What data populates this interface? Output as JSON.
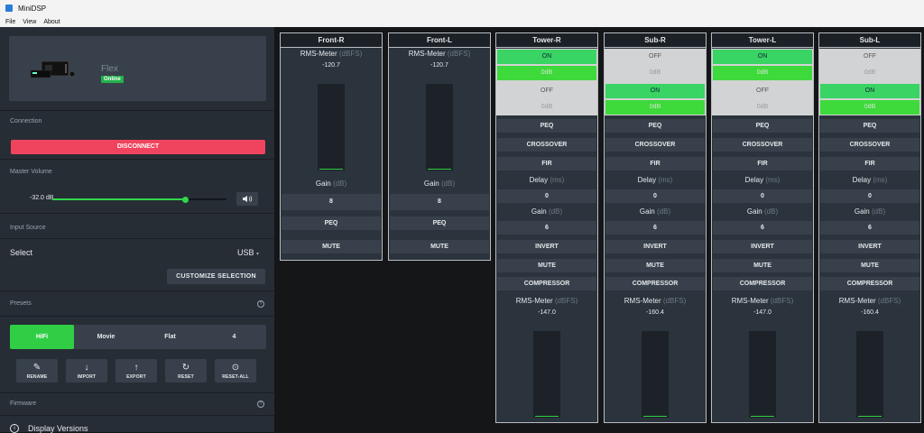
{
  "window": {
    "title": "MiniDSP"
  },
  "menu": [
    "File",
    "View",
    "About"
  ],
  "device": {
    "name": "Flex",
    "status": "Online"
  },
  "connection": {
    "label": "Connection",
    "button": "DISCONNECT"
  },
  "volume": {
    "label": "Master Volume",
    "value": "-32.0 dB",
    "level": 0.76
  },
  "input": {
    "section": "Input Source",
    "select_label": "Select",
    "value": "USB",
    "customize": "CUSTOMIZE SELECTION"
  },
  "presets": {
    "label": "Presets",
    "items": [
      "HiFi",
      "Movie",
      "Flat",
      "4"
    ],
    "active": "HiFi"
  },
  "actions": [
    {
      "label": "RENAME",
      "icon": "edit-icon",
      "glyph": "✎"
    },
    {
      "label": "IMPORT",
      "icon": "arrow-down-icon",
      "glyph": "↓"
    },
    {
      "label": "EXPORT",
      "icon": "arrow-up-icon",
      "glyph": "↑"
    },
    {
      "label": "RESET",
      "icon": "refresh-icon",
      "glyph": "↻"
    },
    {
      "label": "RESET-ALL",
      "icon": "reset-all-icon",
      "glyph": "⊙"
    }
  ],
  "firmware": {
    "label": "Firmware",
    "display_versions": "Display Versions"
  },
  "inputs": [
    {
      "name": "Front-R",
      "meter_label": "RMS-Meter",
      "meter_unit": "(dBFS)",
      "meter_value": "-120.7",
      "gain_label": "Gain",
      "gain_unit": "(dB)",
      "gain_value": "8",
      "peq": "PEQ",
      "mute": "MUTE"
    },
    {
      "name": "Front-L",
      "meter_label": "RMS-Meter",
      "meter_unit": "(dBFS)",
      "meter_value": "-120.7",
      "gain_label": "Gain",
      "gain_unit": "(dB)",
      "gain_value": "8",
      "peq": "PEQ",
      "mute": "MUTE"
    }
  ],
  "outputs": [
    {
      "name": "Tower-R",
      "routes": [
        {
          "state": "ON",
          "level": "0",
          "unit": "dB"
        },
        {
          "state": "OFF",
          "level": "0",
          "unit": "dB"
        }
      ],
      "peq": "PEQ",
      "crossover": "CROSSOVER",
      "fir": "FIR",
      "delay_label": "Delay",
      "delay_unit": "(ms)",
      "delay_value": "0",
      "gain_label": "Gain",
      "gain_unit": "(dB)",
      "gain_value": "6",
      "invert": "INVERT",
      "mute": "MUTE",
      "compressor": "COMPRESSOR",
      "meter_label": "RMS-Meter",
      "meter_unit": "(dBFS)",
      "meter_value": "-147.0"
    },
    {
      "name": "Sub-R",
      "routes": [
        {
          "state": "OFF",
          "level": "0",
          "unit": "dB"
        },
        {
          "state": "ON",
          "level": "0",
          "unit": "dB"
        }
      ],
      "peq": "PEQ",
      "crossover": "CROSSOVER",
      "fir": "FIR",
      "delay_label": "Delay",
      "delay_unit": "(ms)",
      "delay_value": "0",
      "gain_label": "Gain",
      "gain_unit": "(dB)",
      "gain_value": "6",
      "invert": "INVERT",
      "mute": "MUTE",
      "compressor": "COMPRESSOR",
      "meter_label": "RMS-Meter",
      "meter_unit": "(dBFS)",
      "meter_value": "-160.4"
    },
    {
      "name": "Tower-L",
      "routes": [
        {
          "state": "ON",
          "level": "0",
          "unit": "dB"
        },
        {
          "state": "OFF",
          "level": "0",
          "unit": "dB"
        }
      ],
      "peq": "PEQ",
      "crossover": "CROSSOVER",
      "fir": "FIR",
      "delay_label": "Delay",
      "delay_unit": "(ms)",
      "delay_value": "0",
      "gain_label": "Gain",
      "gain_unit": "(dB)",
      "gain_value": "6",
      "invert": "INVERT",
      "mute": "MUTE",
      "compressor": "COMPRESSOR",
      "meter_label": "RMS-Meter",
      "meter_unit": "(dBFS)",
      "meter_value": "-147.0"
    },
    {
      "name": "Sub-L",
      "routes": [
        {
          "state": "OFF",
          "level": "0",
          "unit": "dB"
        },
        {
          "state": "ON",
          "level": "0",
          "unit": "dB"
        }
      ],
      "peq": "PEQ",
      "crossover": "CROSSOVER",
      "fir": "FIR",
      "delay_label": "Delay",
      "delay_unit": "(ms)",
      "delay_value": "0",
      "gain_label": "Gain",
      "gain_unit": "(dB)",
      "gain_value": "6",
      "invert": "INVERT",
      "mute": "MUTE",
      "compressor": "COMPRESSOR",
      "meter_label": "RMS-Meter",
      "meter_unit": "(dBFS)",
      "meter_value": "-160.4"
    }
  ],
  "colors": {
    "accent": "#2fce44",
    "danger": "#f0445e",
    "panel": "#2b333c",
    "sidebar": "#262d35"
  }
}
